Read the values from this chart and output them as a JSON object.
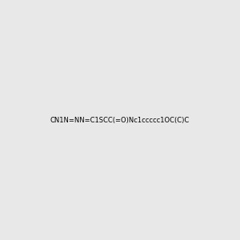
{
  "smiles": "CN1N=NN=C1SCC(=O)Nc1ccccc1OC(C)C",
  "image_size": 300,
  "background_color": "#e8e8e8",
  "title": ""
}
